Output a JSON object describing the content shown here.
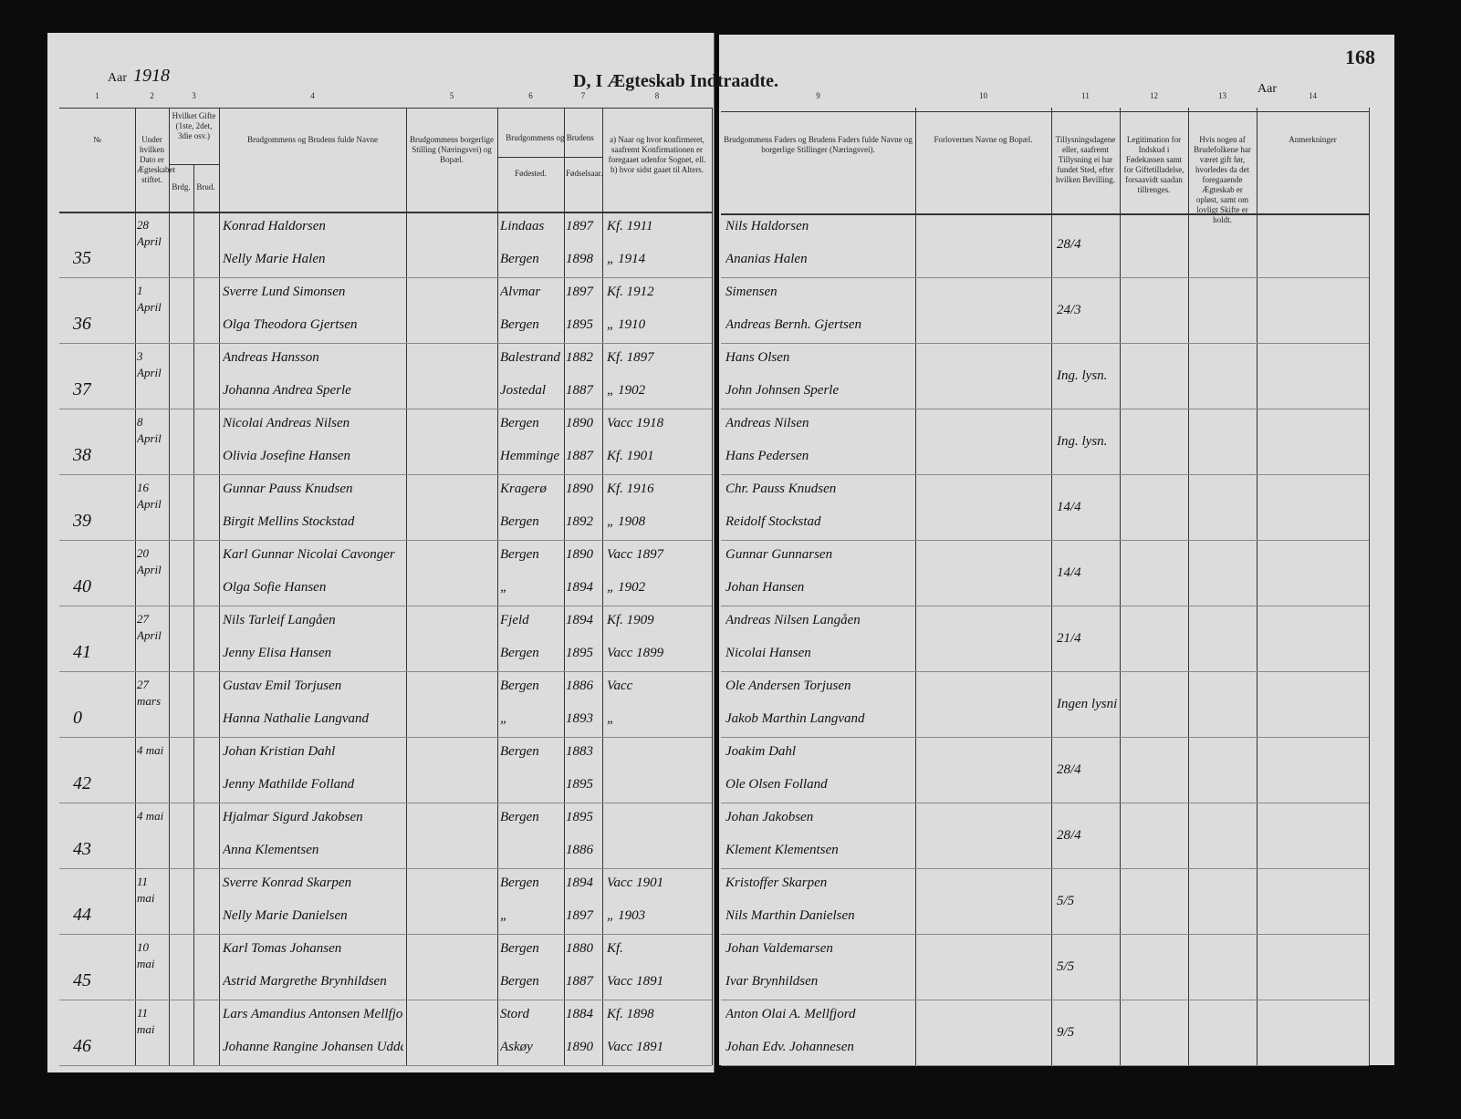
{
  "header": {
    "year_label_left": "Aar",
    "year": "1918",
    "title": "D, I Ægteskab Indtraadte.",
    "page_number": "168",
    "year_label_right": "Aar"
  },
  "column_numbers": [
    "1",
    "2",
    "3",
    "4",
    "5",
    "6",
    "7",
    "8",
    "9",
    "10",
    "11",
    "12",
    "13",
    "14"
  ],
  "columns": [
    "№",
    "Under hvilken Dato er Ægteskabet stiftet.",
    "Hvilket Gifte (1ste, 2det, 3die osv.)",
    "Brudgommens og Brudens fulde Navne",
    "Brudgommens borgerlige Stilling (Næringsvei) og Bopæl.",
    "Fødested.",
    "Fødselsaar.",
    "a) Naar og hvor konfirmeret, saafremt Konfirmationen er foregaaet udenfor Sognet, ell. b) hvor sidst gaaet til Alters.",
    "Brudgommens Faders og Brudens Faders fulde Navne og borgerlige Stillinger (Næringsvei).",
    "Forlovernes Navne og Bopæl.",
    "Tillysningsdagene eller, saafremt Tillysning ei har fundet Sted, efter hvilken Bevilling.",
    "Legitimation for Indskud i Fødekassen samt for Giftetilladelse, forsaavidt saadan tillrenges.",
    "Hvis nogen af Brudefolkene har været gift før, hvorledes da det foregaaende Ægteskab er opløst, samt om lovligt Skifte er holdt.",
    "Anmerkninger"
  ],
  "column_group": "Brudgommens og Brudens",
  "marriage_subheaders": [
    "Brdg.",
    "Brud."
  ],
  "entries": [
    {
      "number": "35",
      "date": "28 April",
      "banns": "28/4",
      "groom": {
        "name": "Konrad Haldorsen",
        "birthplace": "Lindaas",
        "born": "1897",
        "confirmed": "Kf. 1911",
        "father": "Nils Haldorsen"
      },
      "bride": {
        "name": "Nelly Marie Halen",
        "birthplace": "Bergen",
        "born": "1898",
        "confirmed": "„ 1914",
        "father": "Ananias Halen"
      }
    },
    {
      "number": "36",
      "date": "1 April",
      "banns": "24/3",
      "groom": {
        "name": "Sverre Lund Simonsen",
        "birthplace": "Alvmar",
        "born": "1897",
        "confirmed": "Kf. 1912",
        "father": "Simensen"
      },
      "bride": {
        "name": "Olga Theodora Gjertsen",
        "birthplace": "Bergen",
        "born": "1895",
        "confirmed": "„ 1910",
        "father": "Andreas Bernh. Gjertsen"
      }
    },
    {
      "number": "37",
      "date": "3 April",
      "banns": "Ing. lysn.",
      "groom": {
        "name": "Andreas Hansson",
        "birthplace": "Balestrand",
        "born": "1882",
        "confirmed": "Kf. 1897",
        "father": "Hans Olsen"
      },
      "bride": {
        "name": "Johanna Andrea Sperle",
        "birthplace": "Jostedal",
        "born": "1887",
        "confirmed": "„ 1902",
        "father": "John Johnsen Sperle"
      }
    },
    {
      "number": "38",
      "date": "8 April",
      "banns": "Ing. lysn.",
      "groom": {
        "name": "Nicolai Andreas Nilsen",
        "birthplace": "Bergen",
        "born": "1890",
        "confirmed": "Vacc 1918",
        "father": "Andreas Nilsen"
      },
      "bride": {
        "name": "Olivia Josefine Hansen",
        "birthplace": "Hemminge",
        "born": "1887",
        "confirmed": "Kf. 1901",
        "father": "Hans Pedersen"
      }
    },
    {
      "number": "39",
      "date": "16 April",
      "banns": "14/4",
      "groom": {
        "name": "Gunnar Pauss Knudsen",
        "birthplace": "Kragerø",
        "born": "1890",
        "confirmed": "Kf. 1916",
        "father": "Chr. Pauss Knudsen"
      },
      "bride": {
        "name": "Birgit Mellins Stockstad",
        "birthplace": "Bergen",
        "born": "1892",
        "confirmed": "„ 1908",
        "father": "Reidolf Stockstad"
      }
    },
    {
      "number": "40",
      "date": "20 April",
      "banns": "14/4",
      "groom": {
        "name": "Karl Gunnar Nicolai Cavonger",
        "birthplace": "Bergen",
        "born": "1890",
        "confirmed": "Vacc 1897",
        "father": "Gunnar Gunnarsen"
      },
      "bride": {
        "name": "Olga Sofie Hansen",
        "birthplace": "„",
        "born": "1894",
        "confirmed": "„ 1902",
        "father": "Johan Hansen"
      }
    },
    {
      "number": "41",
      "date": "27 April",
      "banns": "21/4",
      "groom": {
        "name": "Nils Tarleif Langåen",
        "birthplace": "Fjeld",
        "born": "1894",
        "confirmed": "Kf. 1909",
        "father": "Andreas Nilsen Langåen"
      },
      "bride": {
        "name": "Jenny Elisa Hansen",
        "birthplace": "Bergen",
        "born": "1895",
        "confirmed": "Vacc 1899",
        "father": "Nicolai Hansen"
      }
    },
    {
      "number": "0",
      "date": "27 mars",
      "banns": "Ingen lysning",
      "groom": {
        "name": "Gustav Emil Torjusen",
        "birthplace": "Bergen",
        "born": "1886",
        "confirmed": "Vacc",
        "father": "Ole Andersen Torjusen"
      },
      "bride": {
        "name": "Hanna Nathalie Langvand",
        "birthplace": "„",
        "born": "1893",
        "confirmed": "„",
        "father": "Jakob Marthin Langvand"
      }
    },
    {
      "number": "42",
      "date": "4 mai",
      "banns": "28/4",
      "groom": {
        "name": "Johan Kristian Dahl",
        "birthplace": "Bergen",
        "born": "1883",
        "confirmed": "",
        "father": "Joakim Dahl"
      },
      "bride": {
        "name": "Jenny Mathilde Folland",
        "birthplace": "",
        "born": "1895",
        "confirmed": "",
        "father": "Ole Olsen Folland"
      }
    },
    {
      "number": "43",
      "date": "4 mai",
      "banns": "28/4",
      "groom": {
        "name": "Hjalmar Sigurd Jakobsen",
        "birthplace": "Bergen",
        "born": "1895",
        "confirmed": "",
        "father": "Johan Jakobsen"
      },
      "bride": {
        "name": "Anna Klementsen",
        "birthplace": "",
        "born": "1886",
        "confirmed": "",
        "father": "Klement Klementsen"
      }
    },
    {
      "number": "44",
      "date": "11 mai",
      "banns": "5/5",
      "groom": {
        "name": "Sverre Konrad Skarpen",
        "birthplace": "Bergen",
        "born": "1894",
        "confirmed": "Vacc 1901",
        "father": "Kristoffer Skarpen"
      },
      "bride": {
        "name": "Nelly Marie Danielsen",
        "birthplace": "„",
        "born": "1897",
        "confirmed": "„ 1903",
        "father": "Nils Marthin Danielsen"
      }
    },
    {
      "number": "45",
      "date": "10 mai",
      "banns": "5/5",
      "groom": {
        "name": "Karl Tomas Johansen",
        "birthplace": "Bergen",
        "born": "1880",
        "confirmed": "Kf.",
        "father": "Johan Valdemarsen"
      },
      "bride": {
        "name": "Astrid Margrethe Brynhildsen",
        "birthplace": "Bergen",
        "born": "1887",
        "confirmed": "Vacc 1891",
        "father": "Ivar Brynhildsen"
      }
    },
    {
      "number": "46",
      "date": "11 mai",
      "banns": "9/5",
      "groom": {
        "name": "Lars Amandius Antonsen Mellfjord",
        "birthplace": "Stord",
        "born": "1884",
        "confirmed": "Kf. 1898",
        "father": "Anton Olai A. Mellfjord"
      },
      "bride": {
        "name": "Johanne Rangine Johansen Uddal",
        "birthplace": "Askøy",
        "born": "1890",
        "confirmed": "Vacc 1891",
        "father": "Johan Edv. Johannesen"
      }
    }
  ]
}
